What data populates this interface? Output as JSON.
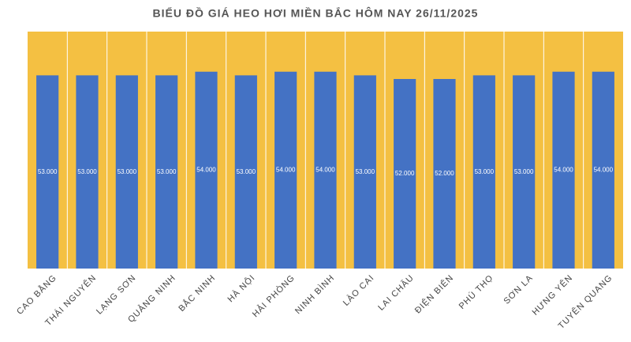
{
  "chart_data": {
    "type": "bar",
    "title": "BIỂU ĐỒ GIÁ HEO HƠI MIỀN BẮC HÔM NAY 26/11/2025",
    "categories": [
      "CAO BẰNG",
      "THÁI NGUYÊN",
      "LẠNG SƠN",
      "QUẢNG NINH",
      "BẮC NINH",
      "HÀ NỘI",
      "HẢI PHÒNG",
      "NINH BÌNH",
      "LÀO CAI",
      "LAI CHÂU",
      "ĐIỆN BIÊN",
      "PHÚ THỌ",
      "SƠN LA",
      "HƯNG YÊN",
      "TUYÊN QUANG"
    ],
    "values": [
      53000,
      53000,
      53000,
      53000,
      54000,
      53000,
      54000,
      54000,
      53000,
      52000,
      52000,
      53000,
      53000,
      54000,
      54000
    ],
    "value_labels": [
      "53.000",
      "53.000",
      "53.000",
      "53.000",
      "54.000",
      "53.000",
      "54.000",
      "54.000",
      "53.000",
      "52.000",
      "52.000",
      "53.000",
      "53.000",
      "54.000",
      "54.000"
    ],
    "color": "#4472c4",
    "background": "#f4c042",
    "ylim": [
      0,
      65000
    ]
  }
}
